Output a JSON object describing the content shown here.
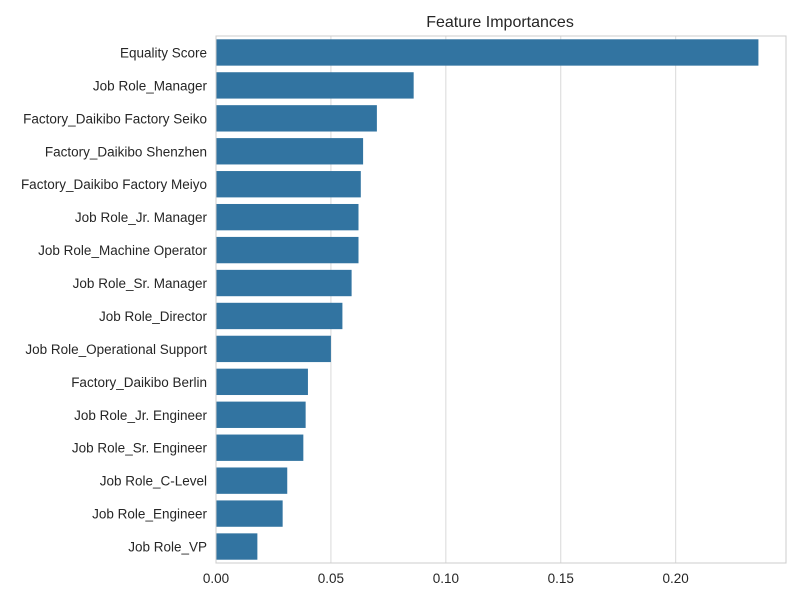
{
  "chart_data": {
    "type": "bar",
    "orientation": "horizontal",
    "title": "Feature Importances",
    "xlabel": "",
    "ylabel": "",
    "xlim": [
      0,
      0.248
    ],
    "xticks": [
      0.0,
      0.05,
      0.1,
      0.15,
      0.2
    ],
    "xtick_labels": [
      "0.00",
      "0.05",
      "0.10",
      "0.15",
      "0.20"
    ],
    "grid": "vertical",
    "bar_color": "#3274a1",
    "categories": [
      "Equality Score",
      "Job Role_Manager",
      "Factory_Daikibo Factory Seiko",
      "Factory_Daikibo Shenzhen",
      "Factory_Daikibo Factory Meiyo",
      "Job Role_Jr. Manager",
      "Job Role_Machine Operator",
      "Job Role_Sr. Manager",
      "Job Role_Director",
      "Job Role_Operational Support",
      "Factory_Daikibo Berlin",
      "Job Role_Jr. Engineer",
      "Job Role_Sr. Engineer",
      "Job Role_C-Level",
      "Job Role_Engineer",
      "Job Role_VP"
    ],
    "values": [
      0.236,
      0.086,
      0.07,
      0.064,
      0.063,
      0.062,
      0.062,
      0.059,
      0.055,
      0.05,
      0.04,
      0.039,
      0.038,
      0.031,
      0.029,
      0.018
    ]
  }
}
